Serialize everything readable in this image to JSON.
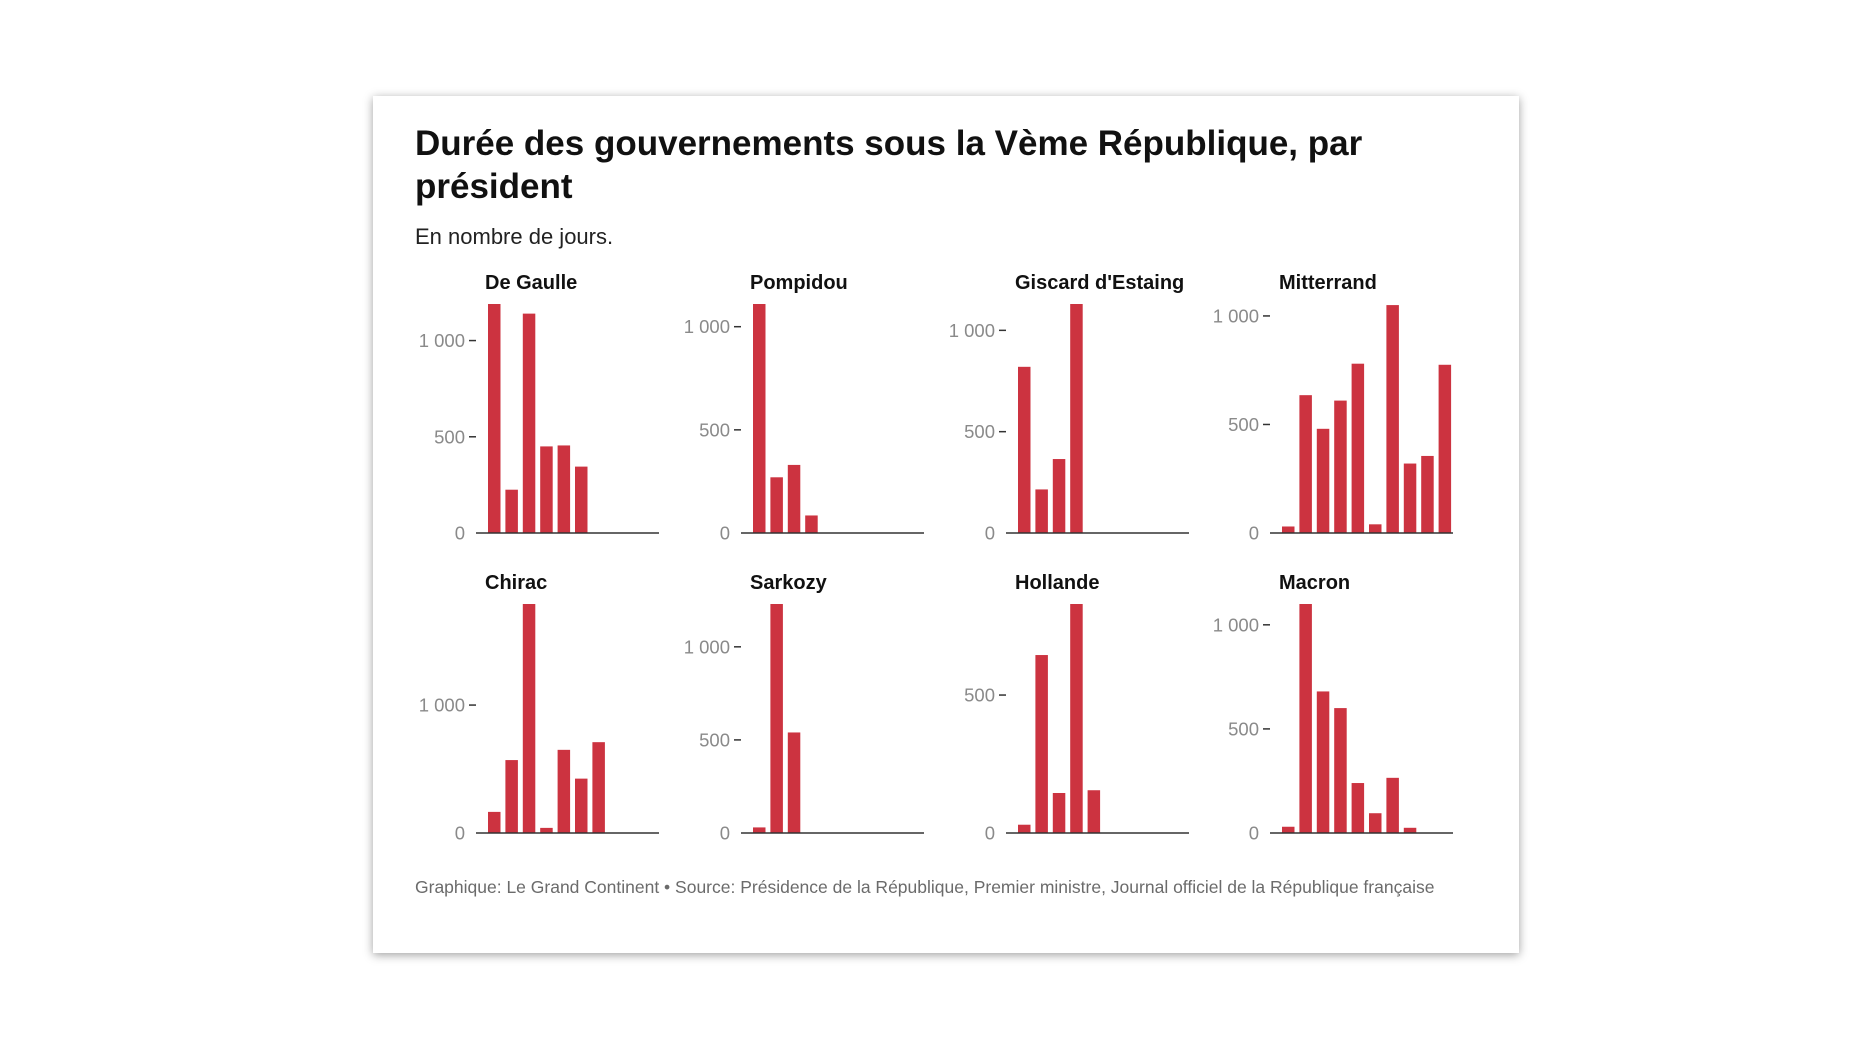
{
  "header": {
    "title": "Durée des gouvernements sous la Vème République, par président",
    "subtitle": "En nombre de jours."
  },
  "footer": {
    "text": "Graphique: Le Grand Continent • Source: Présidence de la République, Premier ministre, Journal officiel de la République française"
  },
  "colors": {
    "bar": "#cc3340",
    "axis": "#333333",
    "tick_label": "#8a8a8a"
  },
  "chart_data": [
    {
      "type": "bar",
      "title": "De Gaulle",
      "ylim": [
        0,
        1190
      ],
      "yticks": [
        0,
        500,
        1000
      ],
      "ytick_labels": [
        "0",
        "500",
        "1 000"
      ],
      "values": [
        1190,
        225,
        1140,
        450,
        455,
        345
      ]
    },
    {
      "type": "bar",
      "title": "Pompidou",
      "ylim": [
        0,
        1110
      ],
      "yticks": [
        0,
        500,
        1000
      ],
      "ytick_labels": [
        "0",
        "500",
        "1 000"
      ],
      "values": [
        1110,
        270,
        330,
        85
      ]
    },
    {
      "type": "bar",
      "title": "Giscard d'Estaing",
      "ylim": [
        0,
        1130
      ],
      "yticks": [
        0,
        500,
        1000
      ],
      "ytick_labels": [
        "0",
        "500",
        "1 000"
      ],
      "values": [
        820,
        215,
        365,
        1130
      ]
    },
    {
      "type": "bar",
      "title": "Mitterrand",
      "ylim": [
        0,
        1055
      ],
      "yticks": [
        0,
        500,
        1000
      ],
      "ytick_labels": [
        "0",
        "500",
        "1 000"
      ],
      "values": [
        30,
        635,
        480,
        610,
        780,
        40,
        1050,
        320,
        355,
        775
      ]
    },
    {
      "type": "bar",
      "title": "Chirac",
      "ylim": [
        0,
        1790
      ],
      "yticks": [
        0,
        1000
      ],
      "ytick_labels": [
        "0",
        "1 000"
      ],
      "values": [
        165,
        570,
        1790,
        40,
        650,
        425,
        710
      ]
    },
    {
      "type": "bar",
      "title": "Sarkozy",
      "ylim": [
        0,
        1230
      ],
      "yticks": [
        0,
        500,
        1000
      ],
      "ytick_labels": [
        "0",
        "500",
        "1 000"
      ],
      "values": [
        30,
        1230,
        540
      ]
    },
    {
      "type": "bar",
      "title": "Hollande",
      "ylim": [
        0,
        830
      ],
      "yticks": [
        0,
        500
      ],
      "ytick_labels": [
        "0",
        "500"
      ],
      "values": [
        30,
        645,
        145,
        830,
        155
      ]
    },
    {
      "type": "bar",
      "title": "Macron",
      "ylim": [
        0,
        1100
      ],
      "yticks": [
        0,
        500,
        1000
      ],
      "ytick_labels": [
        "0",
        "500",
        "1 000"
      ],
      "values": [
        30,
        1100,
        680,
        600,
        240,
        95,
        265,
        25
      ]
    }
  ]
}
